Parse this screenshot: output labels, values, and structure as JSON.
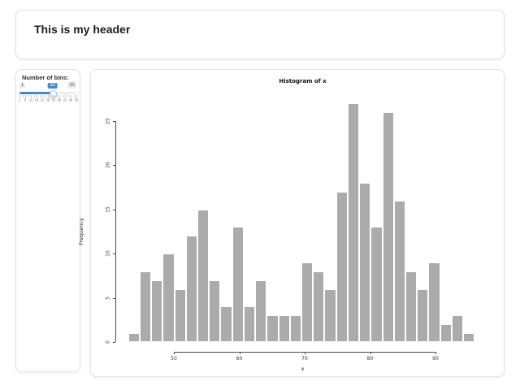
{
  "header": {
    "title": "This is my header"
  },
  "sidebar": {
    "slider": {
      "label": "Number of bins:",
      "min": "1",
      "max": "50",
      "value": "30",
      "percent": 59.2,
      "grid_labels": [
        "1",
        "6",
        "11",
        "16",
        "21",
        "26",
        "31",
        "36",
        "41",
        "46",
        "50"
      ],
      "accent_color": "#428bca"
    }
  },
  "chart_data": {
    "type": "bar",
    "subtype": "histogram",
    "title": "Histogram of x",
    "xlabel": "x",
    "ylabel": "Frequency",
    "bin_start": 43,
    "bin_width": 1.7667,
    "counts": [
      1,
      8,
      7,
      10,
      6,
      12,
      15,
      7,
      4,
      13,
      4,
      7,
      3,
      3,
      3,
      9,
      8,
      6,
      17,
      27,
      18,
      13,
      26,
      16,
      8,
      6,
      9,
      2,
      3,
      1
    ],
    "x_ticks": [
      50,
      60,
      70,
      80,
      90
    ],
    "y_ticks": [
      0,
      5,
      10,
      15,
      20,
      25
    ],
    "xlim": [
      43,
      96
    ],
    "ylim": [
      0,
      27
    ],
    "grid": false,
    "legend": false,
    "bar_color": "#ababab",
    "bar_border": "#ffffff",
    "axis_color": "#4a4a4a"
  }
}
